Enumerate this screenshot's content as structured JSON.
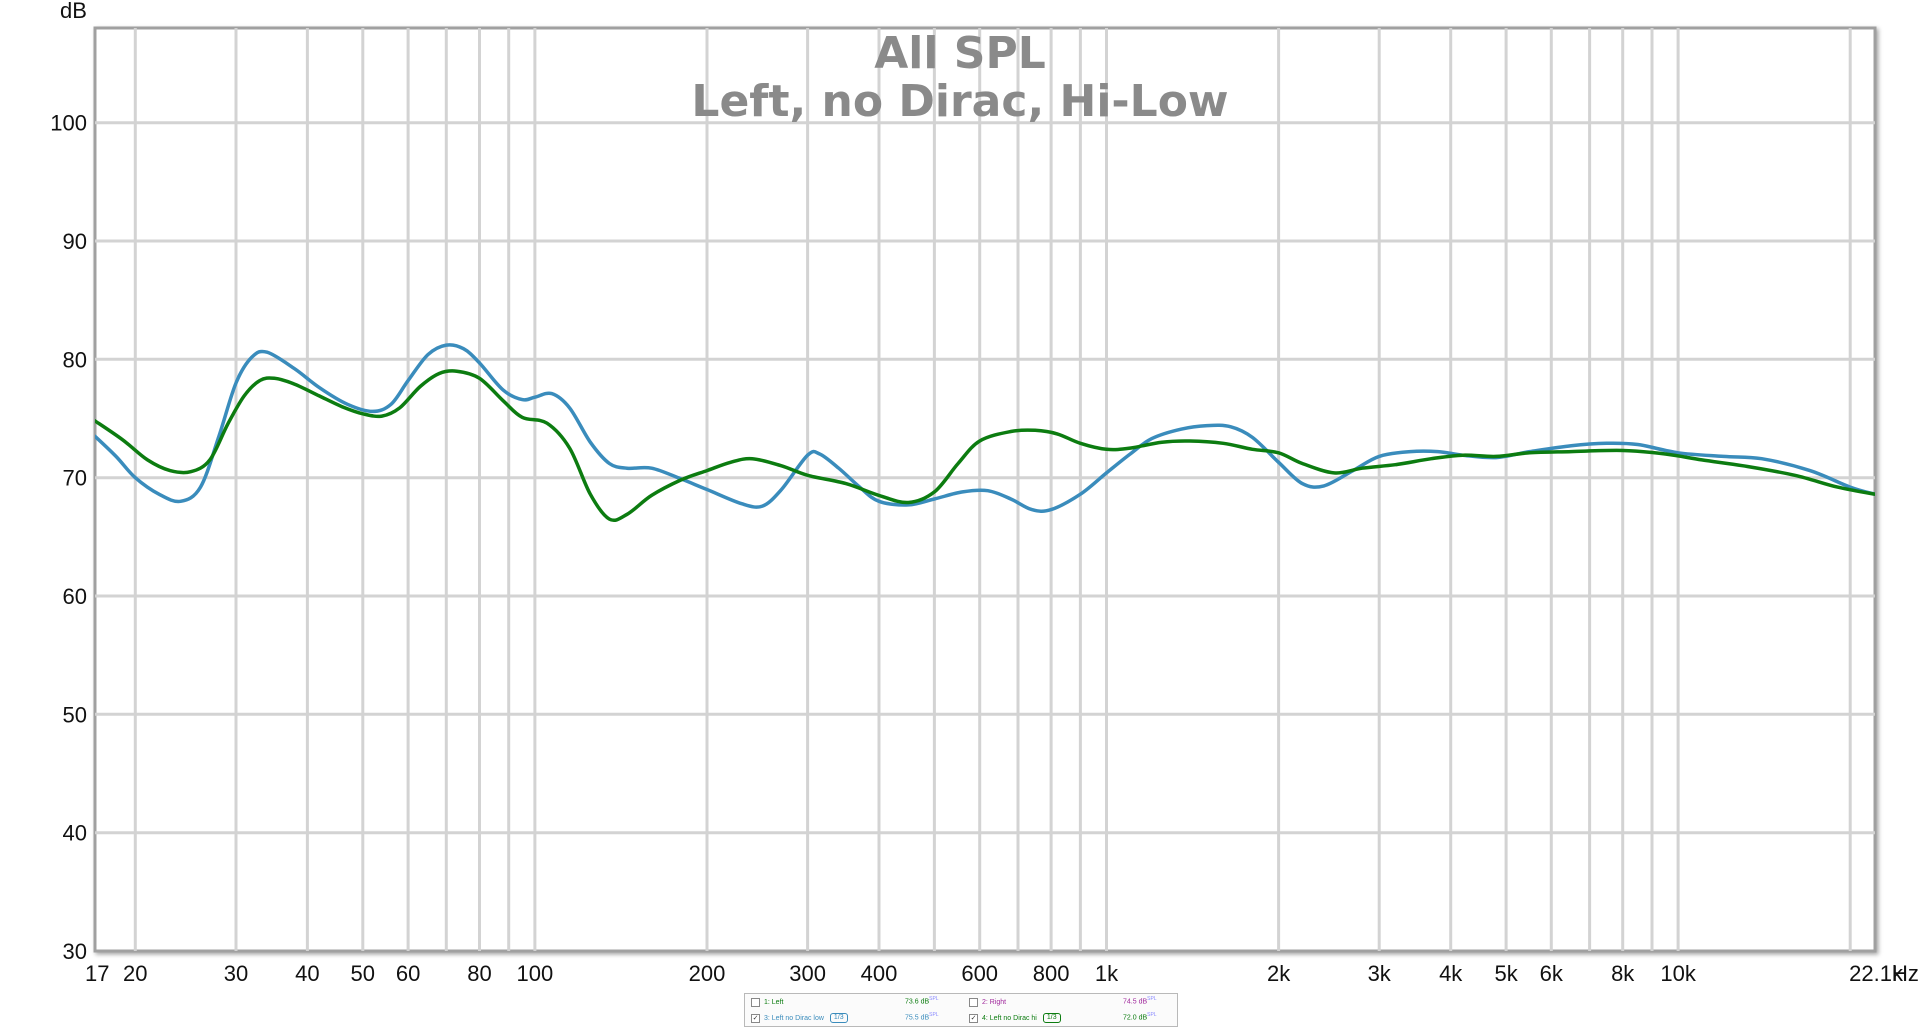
{
  "chart_data": {
    "type": "line",
    "title": "All SPL",
    "subtitle": "Left, no Dirac, Hi-Low",
    "ylabel": "dB",
    "xlabel": "Hz",
    "xscale": "log",
    "xlim": [
      17,
      22100
    ],
    "ylim": [
      30,
      108
    ],
    "grid": true,
    "x_ticks": [
      {
        "value": 17,
        "label": "17"
      },
      {
        "value": 20,
        "label": "20"
      },
      {
        "value": 30,
        "label": "30"
      },
      {
        "value": 40,
        "label": "40"
      },
      {
        "value": 50,
        "label": "50"
      },
      {
        "value": 60,
        "label": "60"
      },
      {
        "value": 80,
        "label": "80"
      },
      {
        "value": 100,
        "label": "100"
      },
      {
        "value": 200,
        "label": "200"
      },
      {
        "value": 300,
        "label": "300"
      },
      {
        "value": 400,
        "label": "400"
      },
      {
        "value": 600,
        "label": "600"
      },
      {
        "value": 800,
        "label": "800"
      },
      {
        "value": 1000,
        "label": "1k"
      },
      {
        "value": 2000,
        "label": "2k"
      },
      {
        "value": 3000,
        "label": "3k"
      },
      {
        "value": 4000,
        "label": "4k"
      },
      {
        "value": 5000,
        "label": "5k"
      },
      {
        "value": 6000,
        "label": "6k"
      },
      {
        "value": 8000,
        "label": "8k"
      },
      {
        "value": 10000,
        "label": "10k"
      },
      {
        "value": 22100,
        "label": "22.1k"
      }
    ],
    "y_ticks": [
      {
        "value": 30,
        "label": "30"
      },
      {
        "value": 40,
        "label": "40"
      },
      {
        "value": 50,
        "label": "50"
      },
      {
        "value": 60,
        "label": "60"
      },
      {
        "value": 70,
        "label": "70"
      },
      {
        "value": 80,
        "label": "80"
      },
      {
        "value": 90,
        "label": "90"
      },
      {
        "value": 100,
        "label": "100"
      }
    ],
    "series": [
      {
        "name": "3: Left no Dirac low",
        "color": "#3a8cbc",
        "points": [
          [
            17,
            73.5
          ],
          [
            18.5,
            71.8
          ],
          [
            20,
            70.0
          ],
          [
            22,
            68.6
          ],
          [
            24,
            68.0
          ],
          [
            26,
            69.2
          ],
          [
            28,
            73.5
          ],
          [
            30,
            78.0
          ],
          [
            32,
            80.2
          ],
          [
            34,
            80.6
          ],
          [
            38,
            79.2
          ],
          [
            42,
            77.6
          ],
          [
            47,
            76.2
          ],
          [
            52,
            75.6
          ],
          [
            56,
            76.2
          ],
          [
            60,
            78.2
          ],
          [
            65,
            80.4
          ],
          [
            70,
            81.2
          ],
          [
            75,
            80.9
          ],
          [
            80,
            79.7
          ],
          [
            88,
            77.4
          ],
          [
            95,
            76.6
          ],
          [
            100,
            76.8
          ],
          [
            107,
            77.1
          ],
          [
            115,
            75.9
          ],
          [
            125,
            73.0
          ],
          [
            135,
            71.2
          ],
          [
            145,
            70.8
          ],
          [
            160,
            70.8
          ],
          [
            180,
            69.9
          ],
          [
            200,
            69.0
          ],
          [
            230,
            67.8
          ],
          [
            250,
            67.6
          ],
          [
            270,
            69.0
          ],
          [
            300,
            71.9
          ],
          [
            315,
            72.0
          ],
          [
            340,
            70.8
          ],
          [
            370,
            69.2
          ],
          [
            400,
            68.0
          ],
          [
            450,
            67.7
          ],
          [
            500,
            68.2
          ],
          [
            560,
            68.8
          ],
          [
            620,
            68.9
          ],
          [
            680,
            68.2
          ],
          [
            740,
            67.3
          ],
          [
            800,
            67.3
          ],
          [
            900,
            68.6
          ],
          [
            1000,
            70.4
          ],
          [
            1100,
            72.0
          ],
          [
            1200,
            73.3
          ],
          [
            1350,
            74.1
          ],
          [
            1500,
            74.4
          ],
          [
            1650,
            74.3
          ],
          [
            1800,
            73.4
          ],
          [
            2000,
            71.3
          ],
          [
            2200,
            69.5
          ],
          [
            2400,
            69.3
          ],
          [
            2700,
            70.6
          ],
          [
            3000,
            71.8
          ],
          [
            3400,
            72.2
          ],
          [
            3800,
            72.2
          ],
          [
            4200,
            71.9
          ],
          [
            4800,
            71.7
          ],
          [
            5500,
            72.2
          ],
          [
            6500,
            72.7
          ],
          [
            7500,
            72.9
          ],
          [
            8500,
            72.8
          ],
          [
            10000,
            72.1
          ],
          [
            12000,
            71.8
          ],
          [
            14000,
            71.6
          ],
          [
            17000,
            70.6
          ],
          [
            20000,
            69.2
          ],
          [
            22100,
            68.6
          ]
        ]
      },
      {
        "name": "4: Left no Dirac hi",
        "color": "#0c7c10",
        "points": [
          [
            17,
            74.8
          ],
          [
            19,
            73.2
          ],
          [
            21,
            71.5
          ],
          [
            23,
            70.6
          ],
          [
            25,
            70.5
          ],
          [
            27,
            71.5
          ],
          [
            29,
            74.5
          ],
          [
            31,
            76.9
          ],
          [
            33,
            78.2
          ],
          [
            35,
            78.4
          ],
          [
            38,
            77.9
          ],
          [
            42,
            76.9
          ],
          [
            46,
            76.0
          ],
          [
            50,
            75.4
          ],
          [
            54,
            75.2
          ],
          [
            58,
            75.9
          ],
          [
            63,
            77.7
          ],
          [
            68,
            78.8
          ],
          [
            73,
            79.0
          ],
          [
            80,
            78.4
          ],
          [
            88,
            76.5
          ],
          [
            95,
            75.1
          ],
          [
            105,
            74.6
          ],
          [
            115,
            72.5
          ],
          [
            125,
            68.6
          ],
          [
            135,
            66.5
          ],
          [
            145,
            66.9
          ],
          [
            160,
            68.5
          ],
          [
            180,
            69.8
          ],
          [
            200,
            70.6
          ],
          [
            220,
            71.3
          ],
          [
            240,
            71.6
          ],
          [
            270,
            71.0
          ],
          [
            300,
            70.2
          ],
          [
            350,
            69.5
          ],
          [
            400,
            68.5
          ],
          [
            450,
            67.9
          ],
          [
            500,
            68.8
          ],
          [
            550,
            71.2
          ],
          [
            600,
            73.1
          ],
          [
            680,
            73.9
          ],
          [
            750,
            74.0
          ],
          [
            820,
            73.7
          ],
          [
            900,
            72.9
          ],
          [
            1000,
            72.4
          ],
          [
            1100,
            72.5
          ],
          [
            1250,
            73.0
          ],
          [
            1400,
            73.1
          ],
          [
            1600,
            72.9
          ],
          [
            1800,
            72.4
          ],
          [
            2000,
            72.1
          ],
          [
            2200,
            71.2
          ],
          [
            2500,
            70.4
          ],
          [
            2800,
            70.8
          ],
          [
            3200,
            71.1
          ],
          [
            3700,
            71.6
          ],
          [
            4200,
            71.9
          ],
          [
            4800,
            71.8
          ],
          [
            5500,
            72.1
          ],
          [
            6500,
            72.2
          ],
          [
            8000,
            72.3
          ],
          [
            9500,
            72.0
          ],
          [
            11000,
            71.5
          ],
          [
            13000,
            71.0
          ],
          [
            16000,
            70.2
          ],
          [
            19000,
            69.2
          ],
          [
            22100,
            68.6
          ]
        ]
      }
    ]
  },
  "legend": {
    "rows": [
      [
        {
          "checked": false,
          "label": "1: Left",
          "color": "#0c7c10",
          "value": "73.6 dB",
          "unit": "SPL",
          "smoothing": ""
        },
        {
          "checked": false,
          "label": "2: Right",
          "color": "#a0289c",
          "value": "74.5 dB",
          "unit": "SPL",
          "smoothing": ""
        }
      ],
      [
        {
          "checked": true,
          "label": "3: Left no Dirac low",
          "color": "#3a8cbc",
          "value": "75.5 dB",
          "unit": "SPL",
          "smoothing": "1/3"
        },
        {
          "checked": true,
          "label": "4: Left no Dirac hi",
          "color": "#0c7c10",
          "value": "72.0 dB",
          "unit": "SPL",
          "smoothing": "1/3"
        }
      ]
    ]
  }
}
